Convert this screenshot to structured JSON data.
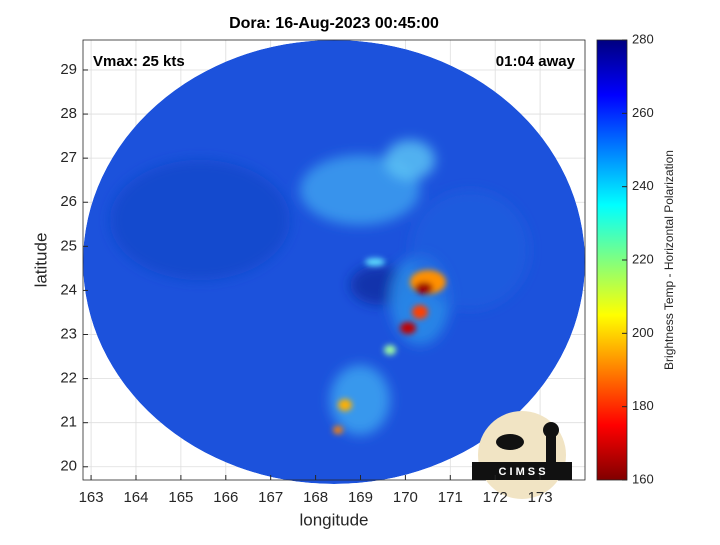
{
  "chart_data": {
    "type": "image",
    "title": "Dora: 16-Aug-2023 00:45:00",
    "xlabel": "longitude",
    "ylabel": "latitude",
    "annotations": [
      "Vmax: 25 kts",
      "01:04 away"
    ],
    "xlim": [
      162.82,
      174.0
    ],
    "xticks": [
      163,
      164,
      165,
      166,
      167,
      168,
      169,
      170,
      171,
      172,
      173
    ],
    "ylim": [
      19.7,
      29.68
    ],
    "yticks": [
      20,
      21,
      22,
      23,
      24,
      25,
      26,
      27,
      28,
      29
    ],
    "grid": true,
    "colorbar": {
      "label": "Brightness Temp - Horizontal Polarization",
      "lim": [
        160,
        280
      ],
      "ticks": [
        160,
        180,
        200,
        220,
        240,
        260,
        280
      ],
      "colormap": [
        "#800000",
        "#ff0000",
        "#ff8000",
        "#ffff00",
        "#80ff80",
        "#00ffff",
        "#0080ff",
        "#0000ff",
        "#000080"
      ]
    },
    "logo": "C I M S S"
  }
}
